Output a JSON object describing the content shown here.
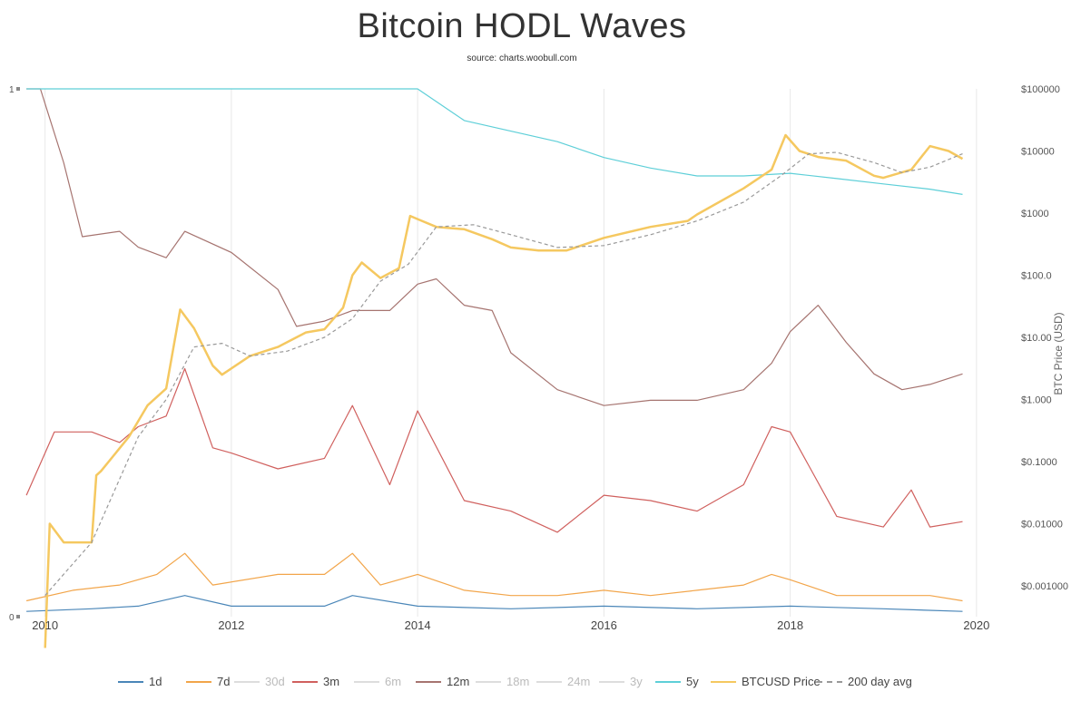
{
  "title": "Bitcoin HODL Waves",
  "subtitle": "source: charts.woobull.com",
  "chart_data": {
    "type": "line",
    "x_ticks": [
      "2010",
      "2012",
      "2014",
      "2016",
      "2018",
      "2020"
    ],
    "y_left_ticks": [
      "1",
      "0"
    ],
    "y_left_range": [
      0,
      1
    ],
    "y_right_label": "BTC Price (USD)",
    "y_right_scale": "log",
    "y_right_ticks": [
      "$100000",
      "$10000",
      "$1000",
      "$100.0",
      "$10.00",
      "$1.000",
      "$0.1000",
      "$0.01000",
      "$0.001000"
    ],
    "grid": "vertical",
    "legend_position": "bottom",
    "series": [
      {
        "name": "1d",
        "color": "#4a86b8",
        "visible": true,
        "x": [
          2009.8,
          2010.5,
          2011.0,
          2011.5,
          2012.0,
          2013.0,
          2013.3,
          2014.0,
          2015.0,
          2016.0,
          2017.0,
          2018.0,
          2019.0,
          2019.85
        ],
        "y": [
          0.01,
          0.015,
          0.02,
          0.04,
          0.02,
          0.02,
          0.04,
          0.02,
          0.015,
          0.02,
          0.015,
          0.02,
          0.015,
          0.01
        ]
      },
      {
        "name": "7d",
        "color": "#f2a54a",
        "visible": true,
        "x": [
          2009.8,
          2010.3,
          2010.8,
          2011.2,
          2011.5,
          2011.8,
          2012.5,
          2013.0,
          2013.3,
          2013.6,
          2014.0,
          2014.5,
          2015.0,
          2015.5,
          2016.0,
          2016.5,
          2017.0,
          2017.5,
          2017.8,
          2018.0,
          2018.5,
          2019.0,
          2019.5,
          2019.85
        ],
        "y": [
          0.03,
          0.05,
          0.06,
          0.08,
          0.12,
          0.06,
          0.08,
          0.08,
          0.12,
          0.06,
          0.08,
          0.05,
          0.04,
          0.04,
          0.05,
          0.04,
          0.05,
          0.06,
          0.08,
          0.07,
          0.04,
          0.04,
          0.04,
          0.03
        ]
      },
      {
        "name": "30d",
        "color": "#9ccc9c",
        "visible": false,
        "x": [],
        "y": []
      },
      {
        "name": "3m",
        "color": "#d0605e",
        "visible": true,
        "x": [
          2009.8,
          2010.1,
          2010.5,
          2010.8,
          2011.0,
          2011.3,
          2011.5,
          2011.8,
          2012.0,
          2012.5,
          2013.0,
          2013.3,
          2013.7,
          2014.0,
          2014.5,
          2015.0,
          2015.5,
          2016.0,
          2016.5,
          2017.0,
          2017.5,
          2017.8,
          2018.0,
          2018.5,
          2019.0,
          2019.3,
          2019.5,
          2019.85
        ],
        "y": [
          0.23,
          0.35,
          0.35,
          0.33,
          0.36,
          0.38,
          0.47,
          0.32,
          0.31,
          0.28,
          0.3,
          0.4,
          0.25,
          0.39,
          0.22,
          0.2,
          0.16,
          0.23,
          0.22,
          0.2,
          0.25,
          0.36,
          0.35,
          0.19,
          0.17,
          0.24,
          0.17,
          0.18
        ]
      },
      {
        "name": "6m",
        "color": "#b7a6d6",
        "visible": false,
        "x": [],
        "y": []
      },
      {
        "name": "12m",
        "color": "#a67470",
        "visible": true,
        "x": [
          2009.8,
          2009.95,
          2010.2,
          2010.4,
          2010.8,
          2011.0,
          2011.3,
          2011.5,
          2012.0,
          2012.5,
          2012.7,
          2013.0,
          2013.3,
          2013.7,
          2014.0,
          2014.2,
          2014.5,
          2014.8,
          2015.0,
          2015.5,
          2016.0,
          2016.5,
          2017.0,
          2017.5,
          2017.8,
          2018.0,
          2018.3,
          2018.6,
          2018.9,
          2019.2,
          2019.5,
          2019.85
        ],
        "y": [
          1.0,
          1.0,
          0.86,
          0.72,
          0.73,
          0.7,
          0.68,
          0.73,
          0.69,
          0.62,
          0.55,
          0.56,
          0.58,
          0.58,
          0.63,
          0.64,
          0.59,
          0.58,
          0.5,
          0.43,
          0.4,
          0.41,
          0.41,
          0.43,
          0.48,
          0.54,
          0.59,
          0.52,
          0.46,
          0.43,
          0.44,
          0.46
        ]
      },
      {
        "name": "18m",
        "color": "#f0b8d0",
        "visible": false,
        "x": [],
        "y": []
      },
      {
        "name": "24m",
        "color": "#c8c8c8",
        "visible": false,
        "x": [],
        "y": []
      },
      {
        "name": "3y",
        "color": "#e8e2a0",
        "visible": false,
        "x": [],
        "y": []
      },
      {
        "name": "5y",
        "color": "#5ecfd8",
        "visible": true,
        "x": [
          2009.8,
          2014.0,
          2014.5,
          2015.0,
          2015.5,
          2016.0,
          2016.5,
          2017.0,
          2017.5,
          2018.0,
          2018.5,
          2019.0,
          2019.5,
          2019.85
        ],
        "y": [
          1.0,
          1.0,
          0.94,
          0.92,
          0.9,
          0.87,
          0.85,
          0.835,
          0.835,
          0.84,
          0.83,
          0.82,
          0.81,
          0.8
        ]
      },
      {
        "name": "BTCUSD Price",
        "color": "#f5c860",
        "visible": true,
        "x": [
          2010.0,
          2010.05,
          2010.2,
          2010.5,
          2010.55,
          2010.6,
          2010.9,
          2011.1,
          2011.3,
          2011.45,
          2011.6,
          2011.8,
          2011.9,
          2012.2,
          2012.5,
          2012.8,
          2013.0,
          2013.2,
          2013.3,
          2013.4,
          2013.6,
          2013.8,
          2013.92,
          2014.0,
          2014.2,
          2014.5,
          2014.8,
          2015.0,
          2015.3,
          2015.6,
          2016.0,
          2016.5,
          2016.9,
          2017.0,
          2017.5,
          2017.8,
          2017.95,
          2018.1,
          2018.3,
          2018.6,
          2018.9,
          2019.0,
          2019.3,
          2019.5,
          2019.7,
          2019.85
        ],
        "y": [
          0.0,
          0.01,
          0.005,
          0.005,
          0.06,
          0.07,
          0.25,
          0.8,
          1.5,
          28,
          14,
          3.5,
          2.5,
          5,
          7,
          12,
          13.5,
          30,
          100,
          160,
          90,
          130,
          900,
          800,
          600,
          550,
          380,
          280,
          250,
          250,
          400,
          600,
          750,
          950,
          2500,
          5000,
          18000,
          10000,
          8000,
          7000,
          4000,
          3700,
          5000,
          12000,
          10000,
          7500
        ]
      },
      {
        "name": "200 day avg",
        "color": "#999999",
        "visible": true,
        "x": [
          2010.0,
          2010.5,
          2011.0,
          2011.3,
          2011.6,
          2011.9,
          2012.2,
          2012.6,
          2013.0,
          2013.3,
          2013.6,
          2013.9,
          2014.2,
          2014.6,
          2015.0,
          2015.5,
          2016.0,
          2016.5,
          2017.0,
          2017.5,
          2017.9,
          2018.2,
          2018.5,
          2018.9,
          2019.2,
          2019.5,
          2019.85
        ],
        "y": [
          0.0007,
          0.005,
          0.25,
          1.0,
          7,
          8,
          5,
          6,
          10,
          20,
          80,
          150,
          600,
          650,
          450,
          280,
          300,
          450,
          750,
          1500,
          4000,
          9000,
          9500,
          6500,
          4500,
          5500,
          9000
        ]
      }
    ]
  },
  "legend": [
    {
      "label": "1d",
      "color": "#4a86b8",
      "dash": false,
      "active": true
    },
    {
      "label": "7d",
      "color": "#f2a54a",
      "dash": false,
      "active": true
    },
    {
      "label": "30d",
      "color": "#9ccc9c",
      "dash": false,
      "active": false
    },
    {
      "label": "3m",
      "color": "#d0605e",
      "dash": false,
      "active": true
    },
    {
      "label": "6m",
      "color": "#b7a6d6",
      "dash": false,
      "active": false
    },
    {
      "label": "12m",
      "color": "#a67470",
      "dash": false,
      "active": true
    },
    {
      "label": "18m",
      "color": "#f0b8d0",
      "dash": false,
      "active": false
    },
    {
      "label": "24m",
      "color": "#c8c8c8",
      "dash": false,
      "active": false
    },
    {
      "label": "3y",
      "color": "#e8e2a0",
      "dash": false,
      "active": false
    },
    {
      "label": "5y",
      "color": "#5ecfd8",
      "dash": false,
      "active": true
    },
    {
      "label": "BTCUSD Price",
      "color": "#f5c860",
      "dash": false,
      "active": true
    },
    {
      "label": "200 day avg",
      "color": "#999999",
      "dash": true,
      "active": true
    }
  ]
}
